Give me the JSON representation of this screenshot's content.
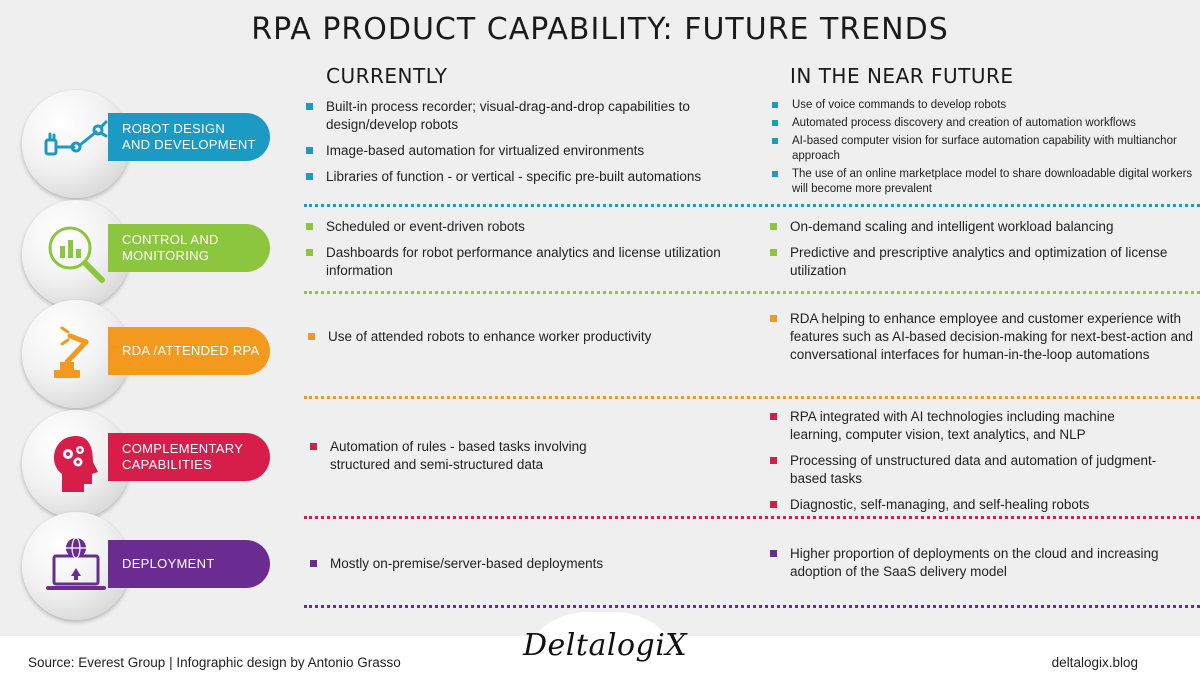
{
  "title": "RPA PRODUCT CAPABILITY: FUTURE TRENDS",
  "columns": {
    "current": "CURRENTLY",
    "future": "IN THE NEAR FUTURE"
  },
  "colors": {
    "blue": "#1b9ac4",
    "green": "#8cc63f",
    "orange": "#f39a1e",
    "red": "#d71e4b",
    "purple": "#6b2c91"
  },
  "rows": [
    {
      "label": "ROBOT DESIGN\nAND DEVELOPMENT",
      "icon": "robotic-arm-icon",
      "current": [
        "Built-in process recorder; visual-drag-and-drop capabilities to design/develop robots",
        "Image-based automation for virtualized environments",
        "Libraries of function - or vertical - specific pre-built automations"
      ],
      "future": [
        "Use of voice commands to develop robots",
        "Automated process discovery and creation of automation workflows",
        "AI-based computer vision for surface automation capability with multianchor approach",
        "The use of an online marketplace model to share downloadable digital workers will become more prevalent"
      ]
    },
    {
      "label": "CONTROL AND\nMONITORING",
      "icon": "chart-magnifier-icon",
      "current": [
        "Scheduled or event-driven robots",
        "Dashboards for robot performance analytics and license utilization information"
      ],
      "future": [
        "On-demand scaling and intelligent workload balancing",
        "Predictive and prescriptive analytics and optimization of license utilization"
      ]
    },
    {
      "label": "RDA /ATTENDED RPA",
      "icon": "robot-arm-icon",
      "current": [
        "Use of attended robots to enhance worker productivity"
      ],
      "future": [
        "RDA helping to enhance employee and customer experience with features such as AI-based decision-making for next-best-action and conversational interfaces for human-in-the-loop automations"
      ]
    },
    {
      "label": "COMPLEMENTARY\nCAPABILITIES",
      "icon": "head-gears-icon",
      "current": [
        "Automation of rules - based tasks involving structured and semi-structured data"
      ],
      "future": [
        "RPA integrated with AI technologies including machine learning, computer vision, text analytics, and NLP",
        "Processing of unstructured data and automation of judgment-based tasks",
        "Diagnostic, self-managing, and self-healing robots"
      ]
    },
    {
      "label": "DEPLOYMENT",
      "icon": "laptop-globe-icon",
      "current": [
        "Mostly on-premise/server-based deployments"
      ],
      "future": [
        "Higher proportion of deployments on the cloud and increasing adoption of the SaaS delivery model"
      ]
    }
  ],
  "footer": {
    "source": "Source: Everest Group | Infographic design by Antonio Grasso",
    "logo": "DeltalogiX",
    "blog": "deltalogix.blog"
  }
}
